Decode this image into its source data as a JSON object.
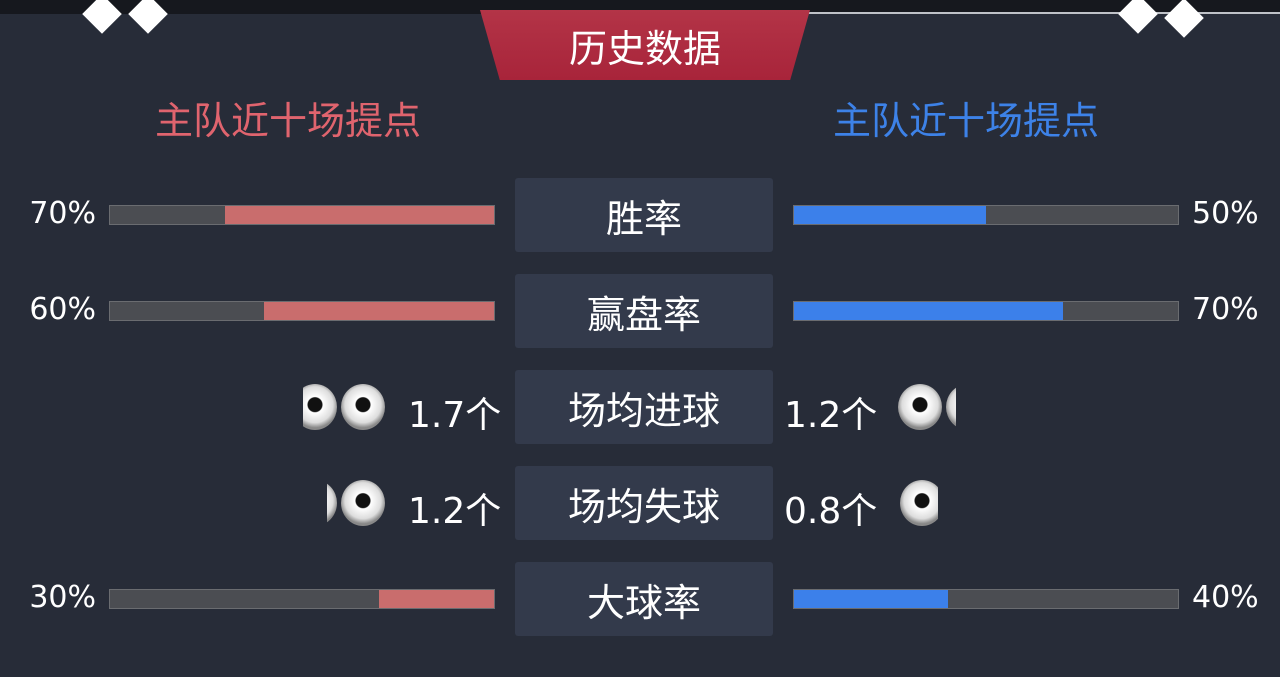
{
  "header": {
    "title": "历史数据"
  },
  "teams": {
    "left": "主队近十场提点",
    "right": "主队近十场提点",
    "left_color": "#e0646e",
    "right_color": "#3d82e8"
  },
  "colors": {
    "left_fill": "#c96d6d",
    "right_fill": "#3c80ea",
    "track": "#4b4d52"
  },
  "rows": [
    {
      "label": "胜率",
      "type": "bar",
      "left": 70,
      "right": 50,
      "left_text": "70%",
      "right_text": "50%"
    },
    {
      "label": "赢盘率",
      "type": "bar",
      "left": 60,
      "right": 70,
      "left_text": "60%",
      "right_text": "70%"
    },
    {
      "label": "场均进球",
      "type": "balls",
      "left": 1.7,
      "right": 1.2,
      "left_text": "1.7个",
      "right_text": "1.2个"
    },
    {
      "label": "场均失球",
      "type": "balls",
      "left": 1.2,
      "right": 0.8,
      "left_text": "1.2个",
      "right_text": "0.8个"
    },
    {
      "label": "大球率",
      "type": "bar",
      "left": 30,
      "right": 40,
      "left_text": "30%",
      "right_text": "40%"
    }
  ]
}
